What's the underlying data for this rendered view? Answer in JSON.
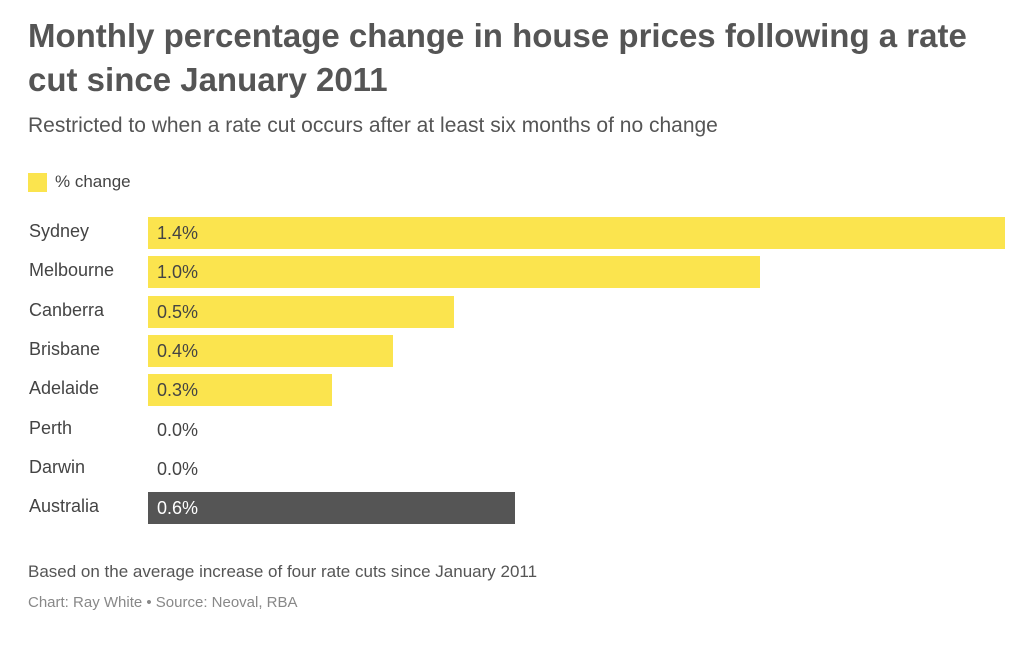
{
  "chart_data": {
    "type": "bar",
    "orientation": "horizontal",
    "title": "Monthly percentage change in house prices following a rate cut since January 2011",
    "subtitle": "Restricted to when a rate cut occurs after at least six months of no change",
    "legend": [
      {
        "label": "% change",
        "color": "#fbe44e"
      }
    ],
    "legend_position": "top-left",
    "categories": [
      "Sydney",
      "Melbourne",
      "Canberra",
      "Brisbane",
      "Adelaide",
      "Perth",
      "Darwin",
      "Australia"
    ],
    "values": [
      1.4,
      1.0,
      0.5,
      0.4,
      0.3,
      0.0,
      0.0,
      0.6
    ],
    "value_labels": [
      "1.4%",
      "1.0%",
      "0.5%",
      "0.4%",
      "0.3%",
      "0.0%",
      "0.0%",
      "0.6%"
    ],
    "colors": [
      "#fbe44e",
      "#fbe44e",
      "#fbe44e",
      "#fbe44e",
      "#fbe44e",
      "#fbe44e",
      "#fbe44e",
      "#555555"
    ],
    "xlim": [
      0,
      1.4
    ],
    "grid": false,
    "note": "Based on the average increase of four rate cuts since January 2011",
    "source": "Chart: Ray White • Source: Neoval, RBA"
  }
}
